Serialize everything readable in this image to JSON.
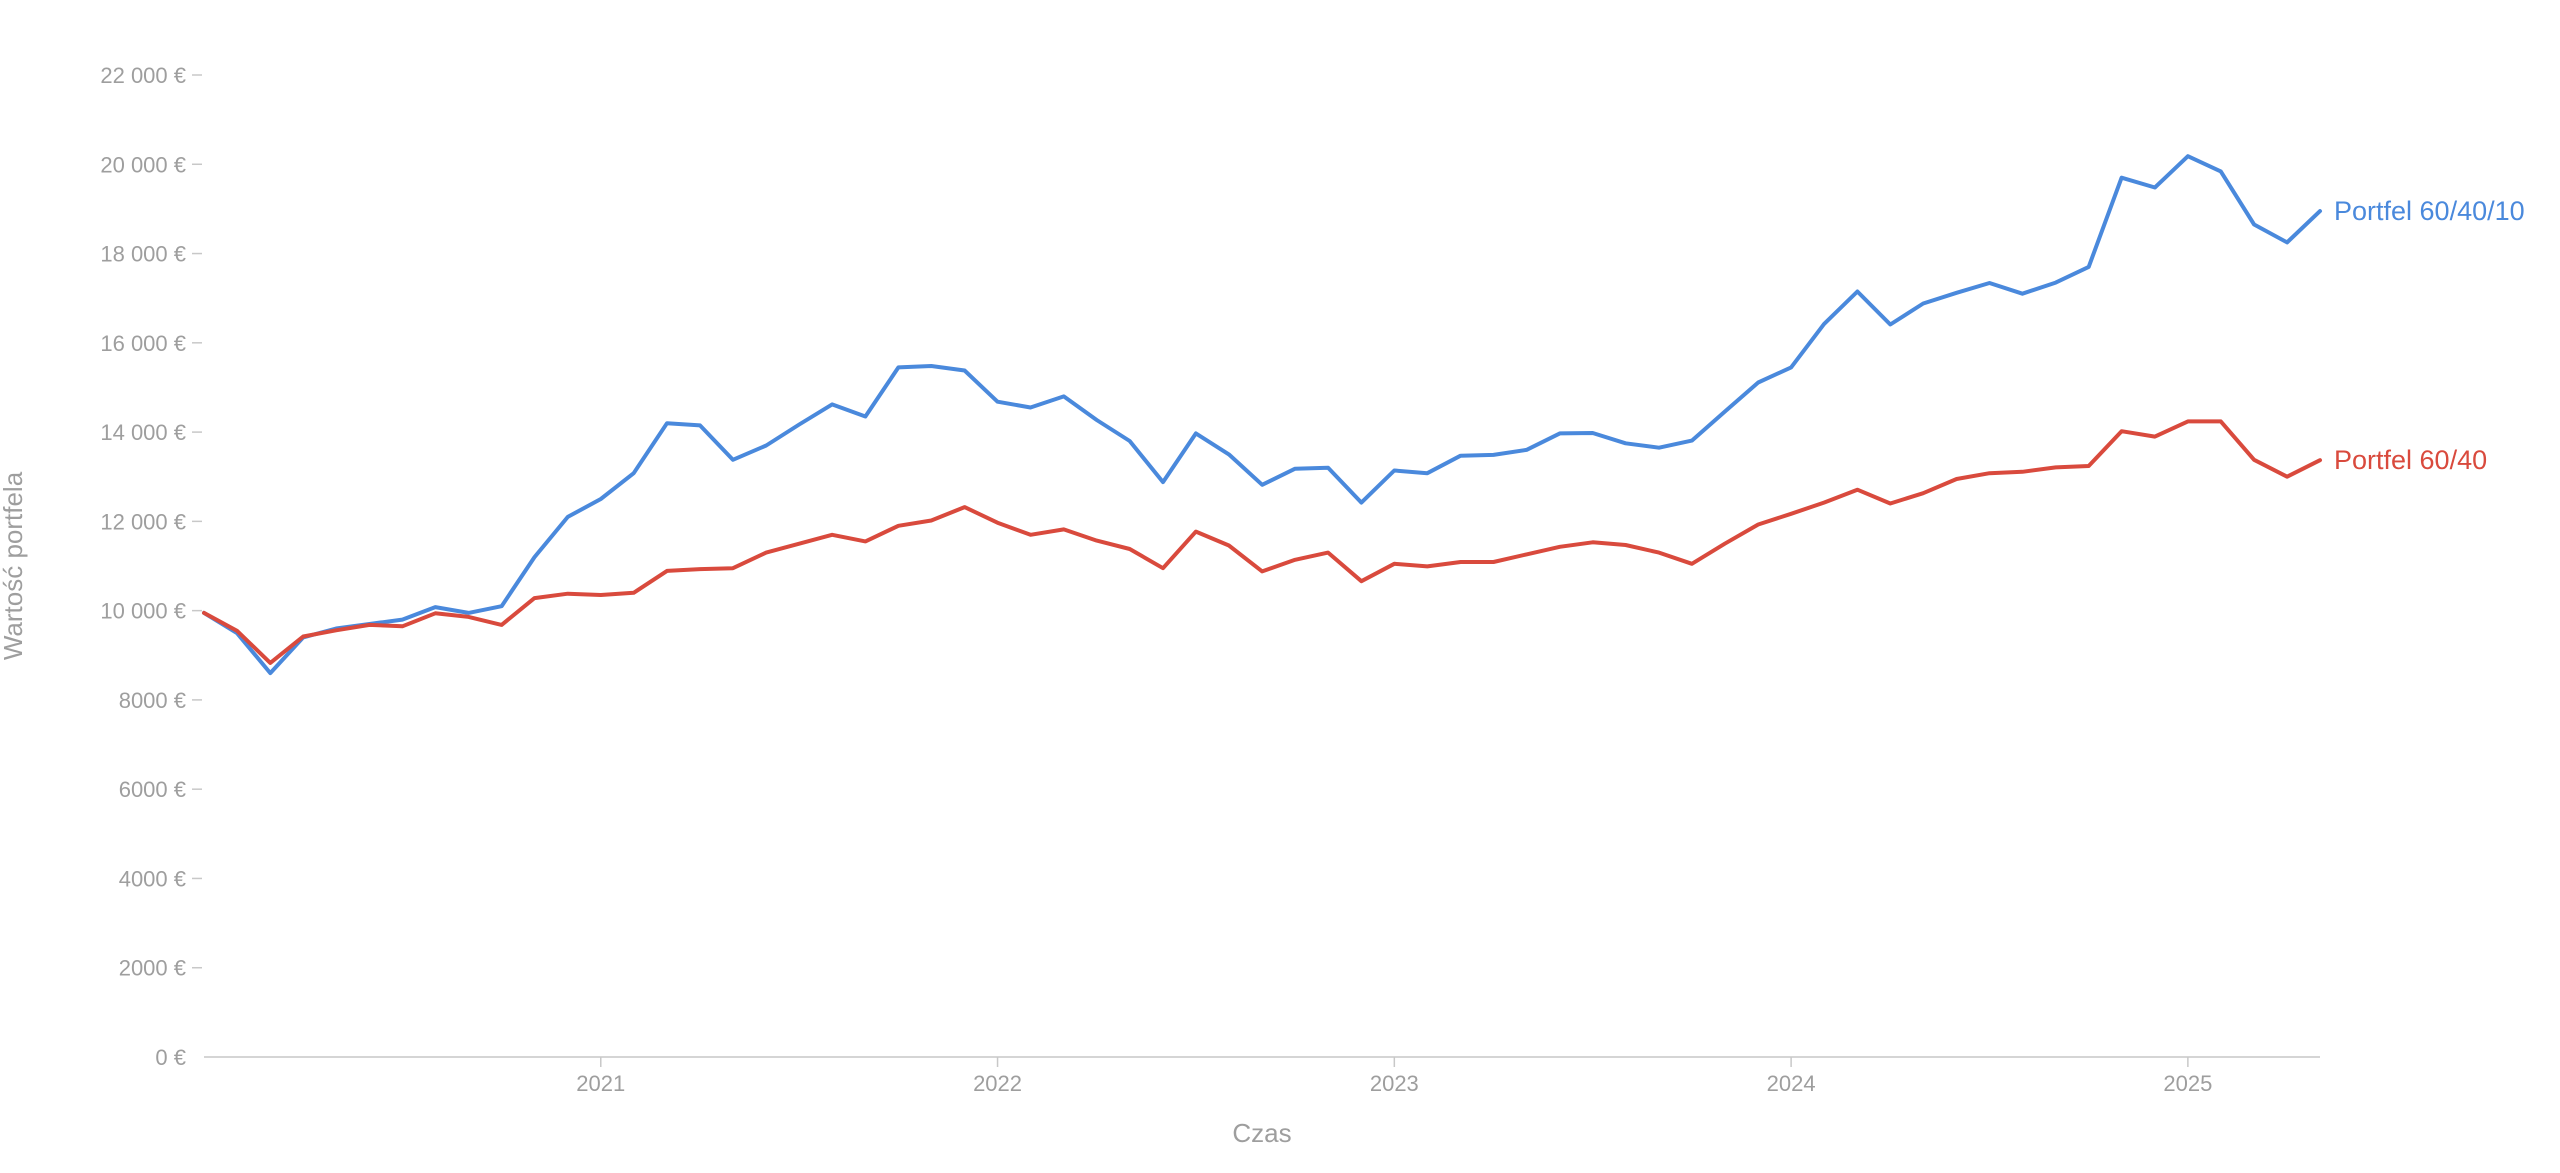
{
  "chart_data": {
    "type": "line",
    "title": "",
    "xlabel": "Czas",
    "ylabel": "Wartość portfela",
    "ylim": [
      0,
      22000
    ],
    "yticks": [
      0,
      2000,
      4000,
      6000,
      8000,
      10000,
      12000,
      14000,
      16000,
      18000,
      20000,
      22000
    ],
    "ytick_labels": [
      "0 €",
      "2000 €",
      "4000 €",
      "6000 €",
      "8000 €",
      "10 000 €",
      "12 000 €",
      "14 000 €",
      "16 000 €",
      "18 000 €",
      "20 000 €",
      "22 000 €"
    ],
    "xlim": [
      2020.0,
      2025.333
    ],
    "xticks": [
      2021,
      2022,
      2023,
      2024,
      2025
    ],
    "xtick_labels": [
      "2021",
      "2022",
      "2023",
      "2024",
      "2025"
    ],
    "grid": false,
    "legend": "end-of-line labels",
    "x": [
      2020.0,
      2020.083,
      2020.167,
      2020.25,
      2020.333,
      2020.417,
      2020.5,
      2020.583,
      2020.667,
      2020.75,
      2020.833,
      2020.917,
      2021.0,
      2021.083,
      2021.167,
      2021.25,
      2021.333,
      2021.417,
      2021.5,
      2021.583,
      2021.667,
      2021.75,
      2021.833,
      2021.917,
      2022.0,
      2022.083,
      2022.167,
      2022.25,
      2022.333,
      2022.417,
      2022.5,
      2022.583,
      2022.667,
      2022.75,
      2022.833,
      2022.917,
      2023.0,
      2023.083,
      2023.167,
      2023.25,
      2023.333,
      2023.417,
      2023.5,
      2023.583,
      2023.667,
      2023.75,
      2023.833,
      2023.917,
      2024.0,
      2024.083,
      2024.167,
      2024.25,
      2024.333,
      2024.417,
      2024.5,
      2024.583,
      2024.667,
      2024.75,
      2024.833,
      2024.917,
      2025.0,
      2025.083,
      2025.167,
      2025.25,
      2025.333
    ],
    "series": [
      {
        "name": "Portfel 60/40/10",
        "color": "#4a89dc",
        "values": [
          9950,
          9500,
          8600,
          9400,
          9600,
          9700,
          9800,
          10080,
          9950,
          10100,
          11200,
          12100,
          12500,
          13080,
          14200,
          14150,
          13380,
          13700,
          14170,
          14620,
          14350,
          15450,
          15480,
          15380,
          14680,
          14550,
          14800,
          14270,
          13800,
          12880,
          13970,
          13500,
          12820,
          13180,
          13200,
          12420,
          13140,
          13080,
          13470,
          13490,
          13600,
          13970,
          13980,
          13750,
          13650,
          13810,
          14460,
          15110,
          15450,
          16420,
          17150,
          16410,
          16880,
          17120,
          17340,
          17100,
          17350,
          17700,
          19700,
          19480,
          20180,
          19840,
          18650,
          18250,
          18950
        ]
      },
      {
        "name": "Portfel 60/40",
        "color": "#d94a3d",
        "values": [
          9950,
          9550,
          8830,
          9420,
          9560,
          9680,
          9650,
          9940,
          9860,
          9680,
          10280,
          10380,
          10350,
          10400,
          10890,
          10930,
          10950,
          11300,
          11500,
          11700,
          11550,
          11900,
          12020,
          12320,
          11970,
          11700,
          11820,
          11570,
          11380,
          10950,
          11770,
          11460,
          10880,
          11140,
          11300,
          10660,
          11050,
          10990,
          11090,
          11090,
          11260,
          11430,
          11530,
          11470,
          11300,
          11050,
          11500,
          11930,
          12170,
          12420,
          12710,
          12400,
          12630,
          12950,
          13080,
          13110,
          13210,
          13240,
          14020,
          13900,
          14240,
          14240,
          13380,
          13000,
          13370
        ]
      }
    ]
  }
}
